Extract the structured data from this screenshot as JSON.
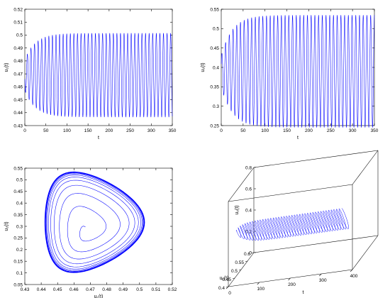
{
  "chart_data": [
    {
      "type": "line",
      "xlabel": "t",
      "ylabel": "u₁(t)",
      "xlim": [
        0,
        350
      ],
      "ylim": [
        0.43,
        0.52
      ],
      "xticks": [
        "0",
        "50",
        "100",
        "150",
        "200",
        "250",
        "300",
        "350"
      ],
      "yticks": [
        "0.43",
        "0.44",
        "0.45",
        "0.46",
        "0.47",
        "0.48",
        "0.49",
        "0.5",
        "0.51",
        "0.52"
      ],
      "grid": false,
      "series": [
        {
          "center": 0.469,
          "initial_amplitude": 0.012,
          "final_amplitude": 0.0325,
          "growth_time": 25,
          "period": 8.5,
          "phase": 3.4,
          "color": "#0000ff"
        }
      ]
    },
    {
      "type": "line",
      "xlabel": "t",
      "ylabel": "u₂(t)",
      "xlim": [
        0,
        350
      ],
      "ylim": [
        0.25,
        0.55
      ],
      "xticks": [
        "0",
        "50",
        "100",
        "150",
        "200",
        "250",
        "300",
        "350"
      ],
      "yticks": [
        "0.25",
        "0.3",
        "0.35",
        "0.4",
        "0.45",
        "0.5",
        "0.55"
      ],
      "grid": false,
      "series": [
        {
          "center": 0.39,
          "initial_amplitude": 0.04,
          "final_amplitude": 0.145,
          "growth_time": 25,
          "period": 8.5,
          "phase": 0.5,
          "color": "#0000ff"
        }
      ]
    },
    {
      "type": "line",
      "subtype": "phase-portrait",
      "xlabel": "u₁(t)",
      "ylabel": "u₂(t)",
      "xlim": [
        0.43,
        0.52
      ],
      "ylim": [
        0.05,
        0.55
      ],
      "xticks": [
        "0.43",
        "0.44",
        "0.45",
        "0.46",
        "0.47",
        "0.48",
        "0.49",
        "0.5",
        "0.51",
        "0.52"
      ],
      "yticks": [
        "0.05",
        "0.1",
        "0.15",
        "0.2",
        "0.25",
        "0.3",
        "0.35",
        "0.4",
        "0.45",
        "0.5",
        "0.55"
      ],
      "grid": false,
      "series": [
        {
          "start": [
            0.473,
            0.32
          ],
          "center": [
            0.468,
            0.28
          ],
          "limit_cycle": {
            "u1_min": 0.436,
            "u1_max": 0.502,
            "u2_min": 0.1,
            "u2_max": 0.535
          },
          "turns": 14,
          "color": "#0000ff"
        }
      ]
    },
    {
      "type": "line",
      "subtype": "3d-trajectory",
      "xlabel": "t",
      "ylabel": "u₁(t)",
      "zlabel": "u₂(t)",
      "xlim": [
        0,
        400
      ],
      "ylim": [
        0.4,
        0.6
      ],
      "zlim": [
        0,
        0.8
      ],
      "xticks": [
        "0",
        "100",
        "200",
        "300",
        "400"
      ],
      "yticks": [
        "0.4",
        "0.45",
        "0.5",
        "0.55",
        "0.6"
      ],
      "zticks": [
        "0",
        "0.2",
        "0.4",
        "0.6",
        "0.8"
      ],
      "grid": false,
      "series": [
        {
          "t_end": 350,
          "period": 8.5,
          "u1_center": 0.469,
          "u1_amplitude": 0.0325,
          "u2_center": 0.39,
          "u2_amplitude": 0.145,
          "color": "#0000ff"
        }
      ]
    }
  ]
}
